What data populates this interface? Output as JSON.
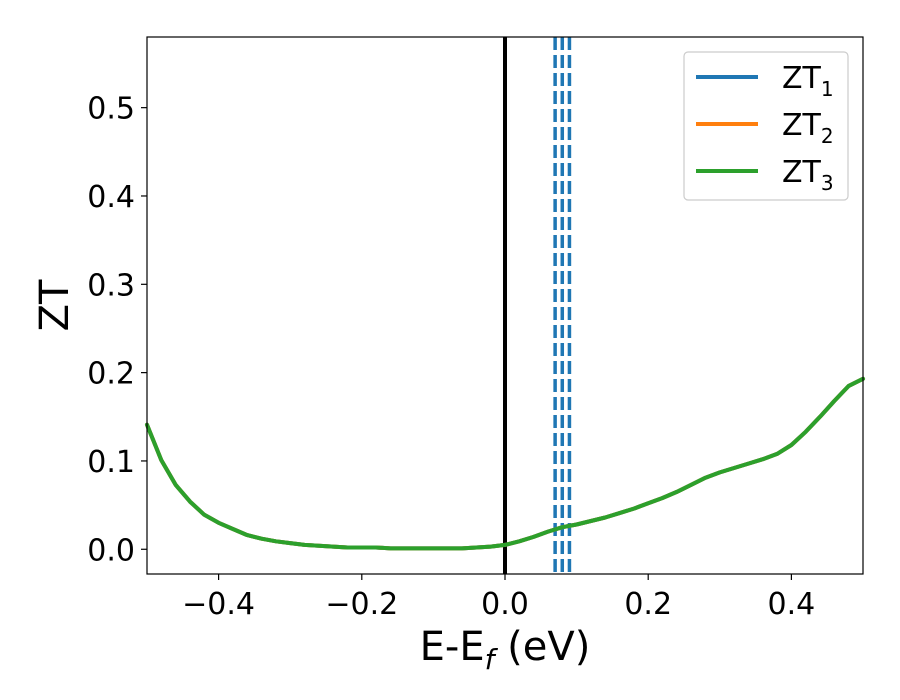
{
  "chart_data": {
    "type": "line",
    "xlabel": "E-E",
    "xlabel_subscript": "f",
    "xlabel_unit": " (eV)",
    "ylabel": "ZT",
    "xlim": [
      -0.5,
      0.5
    ],
    "ylim": [
      -0.028,
      0.58
    ],
    "x_ticks": [
      -0.4,
      -0.2,
      0.0,
      0.2,
      0.4
    ],
    "x_tick_labels": [
      "−0.4",
      "−0.2",
      "0.0",
      "0.2",
      "0.4"
    ],
    "y_ticks": [
      0.0,
      0.1,
      0.2,
      0.3,
      0.4,
      0.5
    ],
    "y_tick_labels": [
      "0.0",
      "0.1",
      "0.2",
      "0.3",
      "0.4",
      "0.5"
    ],
    "grid": false,
    "legend_position": "top-right",
    "x": [
      -0.5,
      -0.48,
      -0.46,
      -0.44,
      -0.42,
      -0.4,
      -0.38,
      -0.36,
      -0.34,
      -0.32,
      -0.3,
      -0.28,
      -0.26,
      -0.24,
      -0.22,
      -0.2,
      -0.18,
      -0.16,
      -0.14,
      -0.12,
      -0.1,
      -0.08,
      -0.06,
      -0.04,
      -0.02,
      0.0,
      0.02,
      0.04,
      0.06,
      0.08,
      0.1,
      0.12,
      0.14,
      0.16,
      0.18,
      0.2,
      0.22,
      0.24,
      0.26,
      0.28,
      0.3,
      0.32,
      0.34,
      0.36,
      0.38,
      0.4,
      0.42,
      0.44,
      0.46,
      0.48,
      0.5
    ],
    "series": [
      {
        "name": "ZT",
        "subscript": "1",
        "color": "#1f77b4",
        "values": [
          0.141,
          0.101,
          0.073,
          0.054,
          0.039,
          0.03,
          0.023,
          0.016,
          0.012,
          0.009,
          0.007,
          0.005,
          0.004,
          0.003,
          0.002,
          0.002,
          0.002,
          0.001,
          0.001,
          0.001,
          0.001,
          0.001,
          0.001,
          0.002,
          0.003,
          0.005,
          0.009,
          0.014,
          0.02,
          0.025,
          0.028,
          0.032,
          0.036,
          0.041,
          0.046,
          0.052,
          0.058,
          0.065,
          0.073,
          0.081,
          0.087,
          0.092,
          0.097,
          0.102,
          0.108,
          0.118,
          0.133,
          0.15,
          0.168,
          0.185,
          0.193
        ]
      },
      {
        "name": "ZT",
        "subscript": "2",
        "color": "#ff7f0e",
        "values": [
          0.141,
          0.101,
          0.073,
          0.054,
          0.039,
          0.03,
          0.023,
          0.016,
          0.012,
          0.009,
          0.007,
          0.005,
          0.004,
          0.003,
          0.002,
          0.002,
          0.002,
          0.001,
          0.001,
          0.001,
          0.001,
          0.001,
          0.001,
          0.002,
          0.003,
          0.005,
          0.009,
          0.014,
          0.02,
          0.025,
          0.028,
          0.032,
          0.036,
          0.041,
          0.046,
          0.052,
          0.058,
          0.065,
          0.073,
          0.081,
          0.087,
          0.092,
          0.097,
          0.102,
          0.108,
          0.118,
          0.133,
          0.15,
          0.168,
          0.185,
          0.193
        ]
      },
      {
        "name": "ZT",
        "subscript": "3",
        "color": "#2ca02c",
        "values": [
          0.141,
          0.101,
          0.073,
          0.054,
          0.039,
          0.03,
          0.023,
          0.016,
          0.012,
          0.009,
          0.007,
          0.005,
          0.004,
          0.003,
          0.002,
          0.002,
          0.002,
          0.001,
          0.001,
          0.001,
          0.001,
          0.001,
          0.001,
          0.002,
          0.003,
          0.005,
          0.009,
          0.014,
          0.02,
          0.025,
          0.028,
          0.032,
          0.036,
          0.041,
          0.046,
          0.052,
          0.058,
          0.065,
          0.073,
          0.081,
          0.087,
          0.092,
          0.097,
          0.102,
          0.108,
          0.118,
          0.133,
          0.15,
          0.168,
          0.185,
          0.193
        ]
      }
    ],
    "vertical_lines": [
      {
        "x": 0.0,
        "style": "solid",
        "color": "#000000"
      },
      {
        "x": 0.07,
        "style": "dashed",
        "color": "#1f77b4"
      },
      {
        "x": 0.08,
        "style": "dashed",
        "color": "#1f77b4"
      },
      {
        "x": 0.09,
        "style": "dashed",
        "color": "#1f77b4"
      }
    ]
  }
}
